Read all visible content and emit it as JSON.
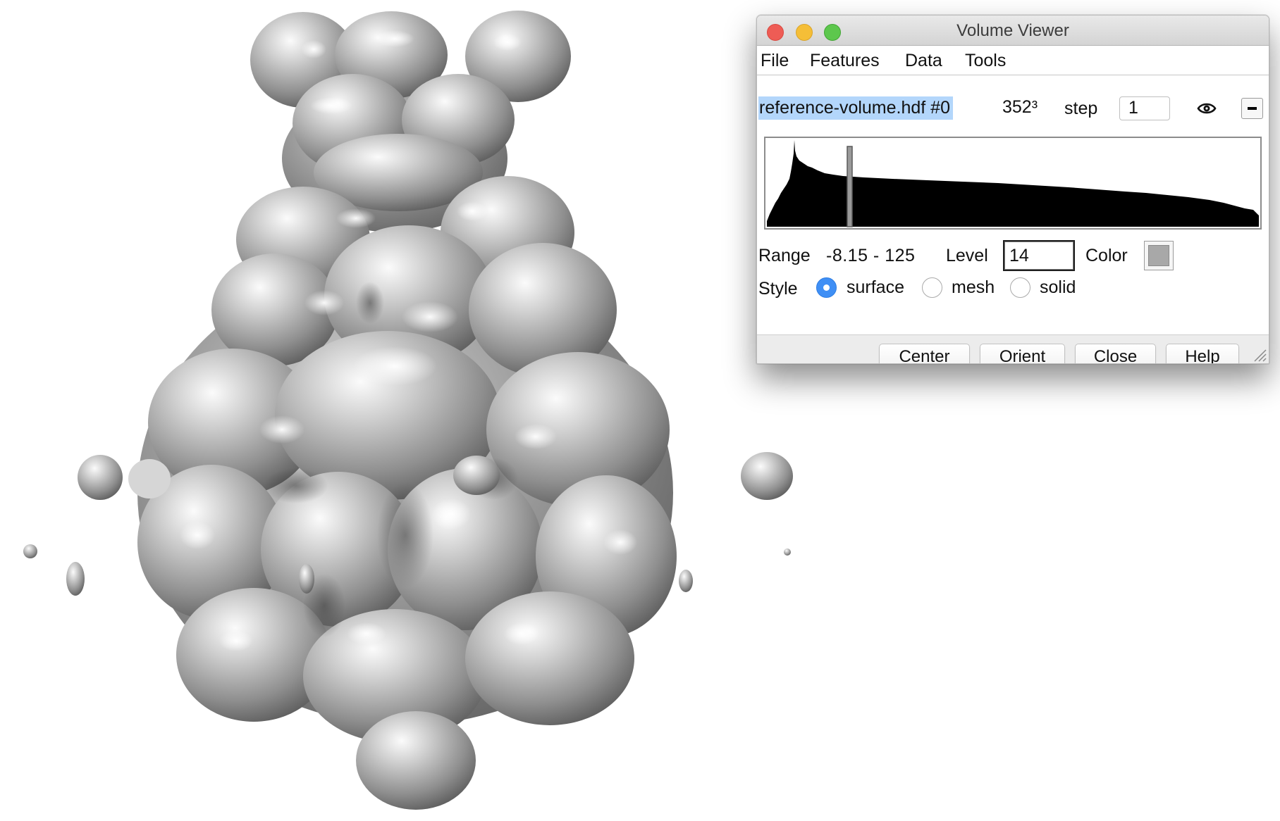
{
  "window": {
    "title": "Volume Viewer"
  },
  "menu": {
    "file": "File",
    "features": "Features",
    "data": "Data",
    "tools": "Tools"
  },
  "volume": {
    "name": "reference-volume.hdf #0",
    "size": "352³",
    "step_label": "step",
    "step_value": "1"
  },
  "histogram": {
    "range_label": "Range",
    "range_value": "-8.15 - 125",
    "level_label": "Level",
    "level_value": "14",
    "color_label": "Color",
    "surface_color": "#a8a8a8"
  },
  "style": {
    "label": "Style",
    "options": [
      {
        "label": "surface",
        "selected": true
      },
      {
        "label": "mesh",
        "selected": false
      },
      {
        "label": "solid",
        "selected": false
      }
    ]
  },
  "buttons": {
    "center": "Center",
    "orient": "Orient",
    "close": "Close",
    "help": "Help"
  },
  "colors": {
    "selection_highlight": "#b3d6fb",
    "radio_selected": "#3f8ff5",
    "close_light": "#ee5c55",
    "minimize_light": "#f5be37",
    "zoom_light": "#5dc74d"
  },
  "icons": {
    "visibility": "eye-icon",
    "collapse": "minus-icon",
    "resize": "resize-grip-icon"
  }
}
